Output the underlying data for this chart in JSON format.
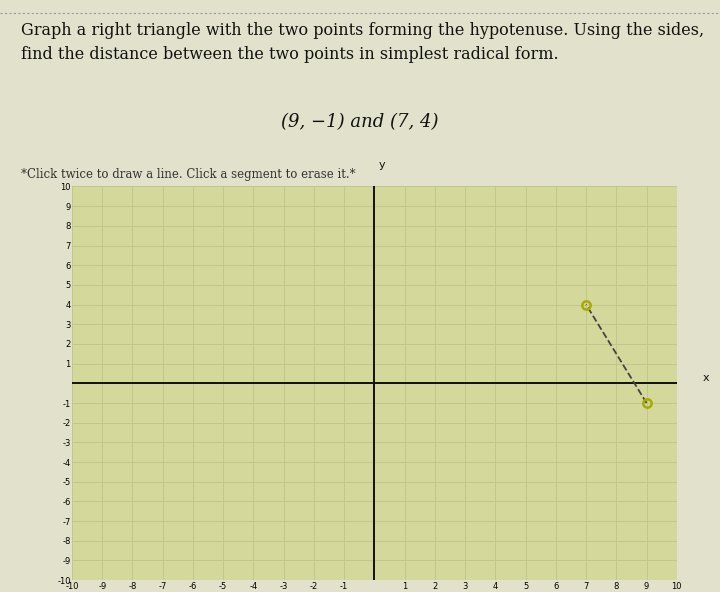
{
  "title_text": "Graph a right triangle with the two points forming the hypotenuse. Using the sides,\nfind the distance between the two points in simplest radical form.",
  "subtitle_text": "(9, −1) and (7, 4)",
  "instruction_text": "*Click twice to draw a line. Click a segment to erase it.*",
  "point1": [
    9,
    -1
  ],
  "point2": [
    7,
    4
  ],
  "xlim": [
    -10,
    10
  ],
  "ylim": [
    -10,
    10
  ],
  "plot_bg": "#d4d89a",
  "grid_color": "#bec88a",
  "axis_color": "#111111",
  "point_color": "#aaaa00",
  "hypotenuse_color": "#444444",
  "hypotenuse_style": "--",
  "title_fontsize": 11.5,
  "subtitle_fontsize": 13,
  "instruction_fontsize": 8.5,
  "outer_bg": "#e2e2cc",
  "tick_fontsize": 6,
  "dotted_line_color": "#999999"
}
